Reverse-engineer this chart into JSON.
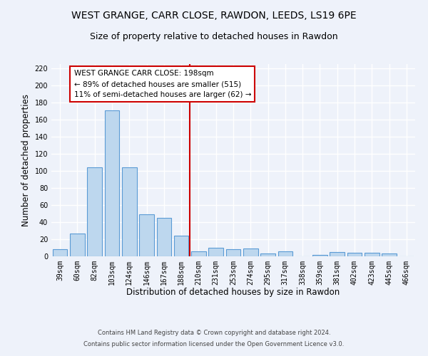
{
  "title1": "WEST GRANGE, CARR CLOSE, RAWDON, LEEDS, LS19 6PE",
  "title2": "Size of property relative to detached houses in Rawdon",
  "xlabel": "Distribution of detached houses by size in Rawdon",
  "ylabel": "Number of detached properties",
  "categories": [
    "39sqm",
    "60sqm",
    "82sqm",
    "103sqm",
    "124sqm",
    "146sqm",
    "167sqm",
    "188sqm",
    "210sqm",
    "231sqm",
    "253sqm",
    "274sqm",
    "295sqm",
    "317sqm",
    "338sqm",
    "359sqm",
    "381sqm",
    "402sqm",
    "423sqm",
    "445sqm",
    "466sqm"
  ],
  "values": [
    8,
    27,
    104,
    171,
    104,
    49,
    45,
    24,
    6,
    10,
    8,
    9,
    3,
    6,
    0,
    2,
    5,
    4,
    4,
    3,
    0
  ],
  "bar_color": "#bdd7ee",
  "bar_edge_color": "#5b9bd5",
  "vline_color": "#cc0000",
  "annotation_text": "WEST GRANGE CARR CLOSE: 198sqm\n← 89% of detached houses are smaller (515)\n11% of semi-detached houses are larger (62) →",
  "annotation_box_color": "#ffffff",
  "annotation_box_edge": "#cc0000",
  "ylim": [
    0,
    225
  ],
  "yticks": [
    0,
    20,
    40,
    60,
    80,
    100,
    120,
    140,
    160,
    180,
    200,
    220
  ],
  "footer1": "Contains HM Land Registry data © Crown copyright and database right 2024.",
  "footer2": "Contains public sector information licensed under the Open Government Licence v3.0.",
  "bg_color": "#eef2fa",
  "grid_color": "#ffffff",
  "title1_fontsize": 10,
  "title2_fontsize": 9,
  "tick_fontsize": 7,
  "ylabel_fontsize": 8.5,
  "xlabel_fontsize": 8.5,
  "footer_fontsize": 6,
  "ann_fontsize": 7.5
}
